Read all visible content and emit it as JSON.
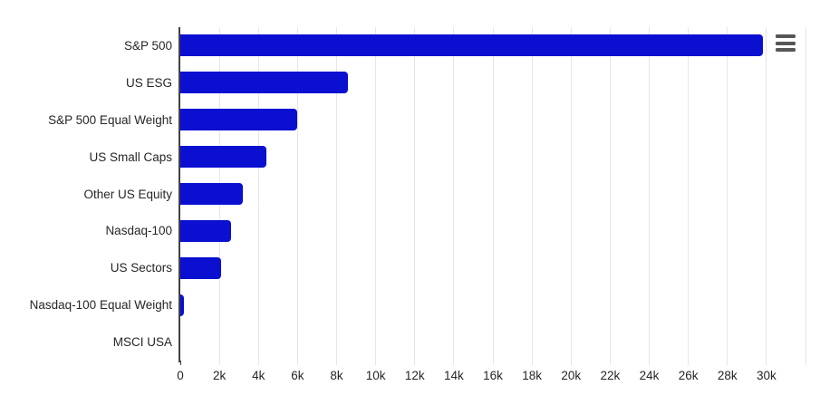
{
  "chart_data": {
    "type": "bar",
    "orientation": "horizontal",
    "title": "",
    "xlabel": "",
    "ylabel": "",
    "categories": [
      "S&P 500",
      "US ESG",
      "S&P 500 Equal Weight",
      "US Small Caps",
      "Other US Equity",
      "Nasdaq-100",
      "US Sectors",
      "Nasdaq-100 Equal Weight",
      "MSCI USA"
    ],
    "values": [
      29800,
      8600,
      6000,
      4400,
      3200,
      2600,
      2100,
      200,
      0
    ],
    "xlim": [
      0,
      32000
    ],
    "x_ticks": [
      {
        "value": 0,
        "label": "0"
      },
      {
        "value": 2000,
        "label": "2k"
      },
      {
        "value": 4000,
        "label": "4k"
      },
      {
        "value": 6000,
        "label": "6k"
      },
      {
        "value": 8000,
        "label": "8k"
      },
      {
        "value": 10000,
        "label": "10k"
      },
      {
        "value": 12000,
        "label": "12k"
      },
      {
        "value": 14000,
        "label": "14k"
      },
      {
        "value": 16000,
        "label": "16k"
      },
      {
        "value": 18000,
        "label": "18k"
      },
      {
        "value": 20000,
        "label": "20k"
      },
      {
        "value": 22000,
        "label": "22k"
      },
      {
        "value": 24000,
        "label": "24k"
      },
      {
        "value": 26000,
        "label": "26k"
      },
      {
        "value": 28000,
        "label": "28k"
      },
      {
        "value": 30000,
        "label": "30k"
      },
      {
        "value": 32000,
        "label": ""
      }
    ],
    "grid": true,
    "legend": false,
    "bar_color": "#0b10d0"
  },
  "colors": {
    "background": "#ffffff",
    "bar": "#0b10d0",
    "grid": "#e6e6e6",
    "axis_line": "#424242",
    "label_text": "#262626",
    "menu_icon": "#565656"
  },
  "icons": {
    "export_menu": "hamburger-menu-icon"
  }
}
